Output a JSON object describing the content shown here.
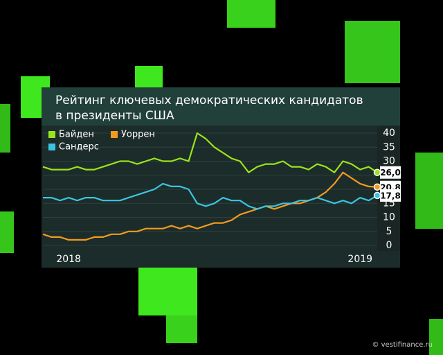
{
  "chart_data": {
    "type": "line",
    "title": [
      "Рейтинг ключевых демократических кандидатов",
      "в президенты США"
    ],
    "categories": [
      null,
      null,
      null,
      "2018",
      null,
      null,
      null,
      null,
      null,
      null,
      null,
      null,
      null,
      null,
      null,
      null,
      null,
      null,
      null,
      null,
      null,
      null,
      null,
      null,
      null,
      null,
      null,
      null,
      null,
      null,
      null,
      null,
      null,
      null,
      null,
      null,
      null,
      "2019",
      null,
      null
    ],
    "series": [
      {
        "name": "Байден",
        "color": "#9be31c",
        "values": [
          28,
          27,
          27,
          27,
          28,
          27,
          27,
          28,
          29,
          30,
          30,
          29,
          30,
          31,
          30,
          30,
          31,
          30,
          40,
          38,
          35,
          33,
          31,
          30,
          26,
          28,
          29,
          29,
          30,
          28,
          28,
          27,
          29,
          28,
          26,
          30,
          29,
          27,
          28,
          26.0
        ],
        "value_labels": [
          null,
          null,
          null,
          null,
          null,
          null,
          null,
          null,
          null,
          null,
          null,
          null,
          null,
          null,
          null,
          null,
          null,
          null,
          null,
          null,
          null,
          null,
          null,
          null,
          null,
          null,
          null,
          null,
          null,
          null,
          null,
          null,
          null,
          null,
          null,
          null,
          null,
          null,
          null,
          "26,0"
        ]
      },
      {
        "name": "Уоррен",
        "color": "#f39a1e",
        "values": [
          4,
          3,
          3,
          2,
          2,
          2,
          3,
          3,
          4,
          4,
          5,
          5,
          6,
          6,
          6,
          7,
          6,
          7,
          6,
          7,
          8,
          8,
          9,
          11,
          12,
          13,
          14,
          13,
          14,
          15,
          15,
          16,
          17,
          19,
          22,
          26,
          24,
          22,
          21,
          20.8
        ],
        "value_labels": [
          null,
          null,
          null,
          null,
          null,
          null,
          null,
          null,
          null,
          null,
          null,
          null,
          null,
          null,
          null,
          null,
          null,
          null,
          null,
          null,
          null,
          null,
          null,
          null,
          null,
          null,
          null,
          null,
          null,
          null,
          null,
          null,
          null,
          null,
          null,
          null,
          null,
          null,
          null,
          "20,8"
        ]
      },
      {
        "name": "Сандерс",
        "color": "#3bc4e0",
        "values": [
          17,
          17,
          16,
          17,
          16,
          17,
          17,
          16,
          16,
          16,
          17,
          18,
          19,
          20,
          22,
          21,
          21,
          20,
          15,
          14,
          15,
          17,
          16,
          16,
          14,
          13,
          14,
          14,
          15,
          15,
          16,
          16,
          17,
          16,
          15,
          16,
          15,
          17,
          16,
          17.8
        ],
        "value_labels": [
          null,
          null,
          null,
          null,
          null,
          null,
          null,
          null,
          null,
          null,
          null,
          null,
          null,
          null,
          null,
          null,
          null,
          null,
          null,
          null,
          null,
          null,
          null,
          null,
          null,
          null,
          null,
          null,
          null,
          null,
          null,
          null,
          null,
          null,
          null,
          null,
          null,
          null,
          null,
          "17,8"
        ]
      }
    ],
    "ylim": [
      0,
      40
    ],
    "yticks": [
      0,
      5,
      10,
      15,
      20,
      25,
      30,
      35,
      40
    ],
    "grid": true
  },
  "watermark": "© vestifinance.ru"
}
